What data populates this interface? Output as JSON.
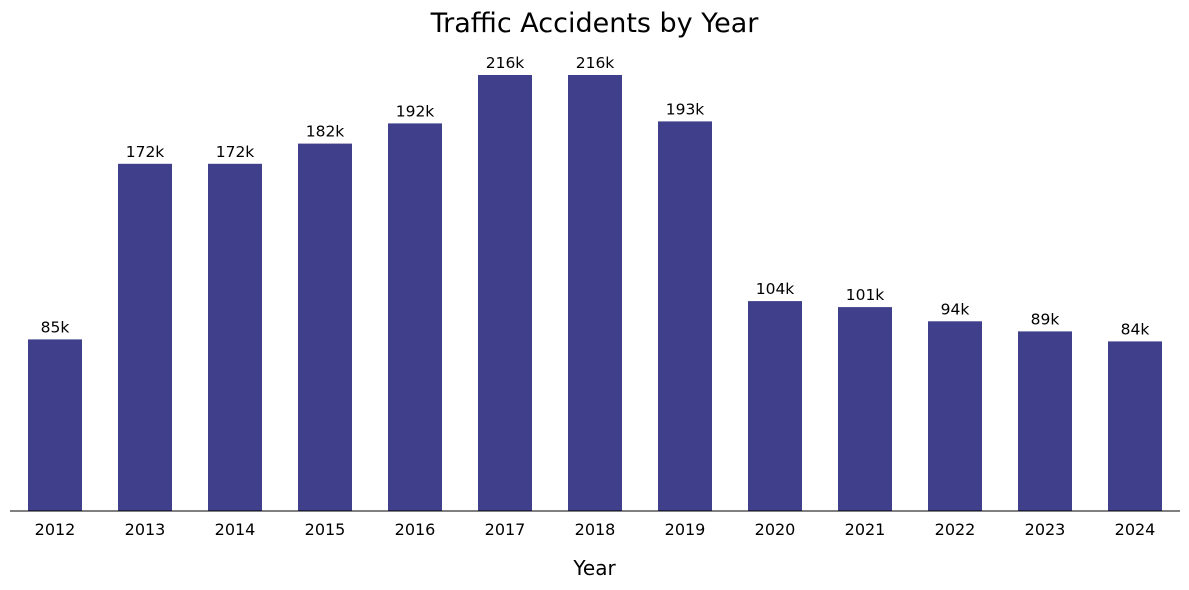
{
  "chart_data": {
    "type": "bar",
    "title": "Traffic Accidents by Year",
    "xlabel": "Year",
    "ylabel": "",
    "categories": [
      "2012",
      "2013",
      "2014",
      "2015",
      "2016",
      "2017",
      "2018",
      "2019",
      "2020",
      "2021",
      "2022",
      "2023",
      "2024"
    ],
    "values": [
      85,
      172,
      172,
      182,
      192,
      216,
      216,
      193,
      104,
      101,
      94,
      89,
      84
    ],
    "value_labels": [
      "85k",
      "172k",
      "172k",
      "182k",
      "192k",
      "216k",
      "216k",
      "193k",
      "104k",
      "101k",
      "94k",
      "89k",
      "84k"
    ],
    "unit": "k",
    "ylim": [
      0,
      230
    ],
    "grid": false,
    "legend": "none",
    "colors": {
      "bar": "#403f8b",
      "axis": "#000000",
      "text": "#000000",
      "background": "#ffffff"
    }
  }
}
